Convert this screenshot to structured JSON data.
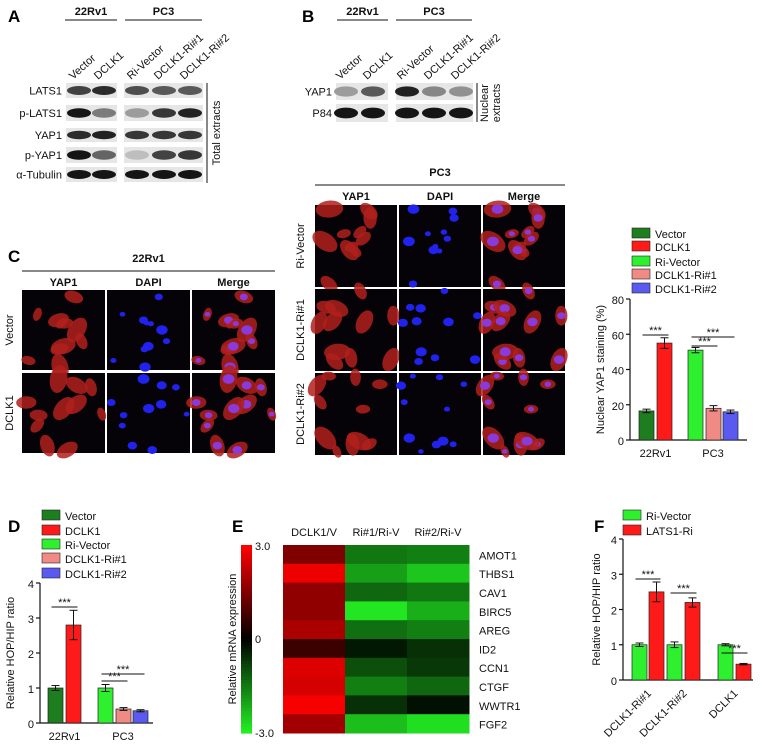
{
  "panel_labels": {
    "A": "A",
    "B": "B",
    "C": "C",
    "D": "D",
    "E": "E",
    "F": "F"
  },
  "blot_A": {
    "groups": [
      "22Rv1",
      "PC3"
    ],
    "lanes": [
      "Vector",
      "DCLK1",
      "Ri-Vector",
      "DCLK1-Ri#1",
      "DCLK1-Ri#2"
    ],
    "rows": [
      {
        "label": "LATS1",
        "intensity": [
          0.75,
          0.85,
          0.7,
          0.65,
          0.65
        ]
      },
      {
        "label": "p-LATS1",
        "intensity": [
          0.95,
          0.5,
          0.35,
          0.8,
          0.9
        ]
      },
      {
        "label": "YAP1",
        "intensity": [
          0.85,
          0.9,
          0.8,
          0.8,
          0.8
        ]
      },
      {
        "label": "p-YAP1",
        "intensity": [
          0.95,
          0.6,
          0.2,
          0.75,
          0.8
        ]
      },
      {
        "label": "α-Tubulin",
        "intensity": [
          0.95,
          0.95,
          0.95,
          0.95,
          0.95
        ]
      }
    ],
    "side_label": [
      "Total extracts"
    ]
  },
  "blot_B": {
    "groups": [
      "22Rv1",
      "PC3"
    ],
    "lanes": [
      "Vector",
      "DCLK1",
      "Ri-Vector",
      "DCLK1-Ri#1",
      "DCLK1-Ri#2"
    ],
    "rows": [
      {
        "label": "YAP1",
        "intensity": [
          0.35,
          0.65,
          0.9,
          0.45,
          0.4
        ]
      },
      {
        "label": "P84",
        "intensity": [
          0.95,
          0.95,
          0.95,
          0.95,
          0.95
        ]
      }
    ],
    "side_label": [
      "Nuclear",
      "extracts"
    ]
  },
  "if_C": {
    "title": "22Rv1",
    "columns": [
      "YAP1",
      "DAPI",
      "Merge"
    ],
    "rows": [
      "Vector",
      "DCLK1"
    ]
  },
  "if_PC3": {
    "title": "PC3",
    "columns": [
      "YAP1",
      "DAPI",
      "Merge"
    ],
    "rows": [
      "Ri-Vector",
      "DCLK1-Ri#1",
      "DCLK1-Ri#2"
    ]
  },
  "colors": {
    "Vector": "#1e7d1e",
    "DCLK1": "#ff1a1a",
    "Ri-Vector": "#2ef02e",
    "DCLK1-Ri#1": "#f08a84",
    "DCLK1-Ri#2": "#5a5af0",
    "LATS1-Ri": "#ff1a1a"
  },
  "chart_data": [
    {
      "id": "nuclear",
      "type": "bar",
      "ylabel": "Nuclear YAP1 staining (%)",
      "ylim": [
        0,
        80
      ],
      "yticks": [
        "0",
        "20",
        "40",
        "60",
        "80"
      ],
      "legend": [
        "Vector",
        "DCLK1",
        "Ri-Vector",
        "DCLK1-Ri#1",
        "DCLK1-Ri#2"
      ],
      "legend_position": "top",
      "groups": [
        {
          "label": "22Rv1",
          "bars": [
            {
              "series": "Vector",
              "value": 16.5,
              "error": 1.0
            },
            {
              "series": "DCLK1",
              "value": 55,
              "error": 3.0
            }
          ]
        },
        {
          "label": "PC3",
          "bars": [
            {
              "series": "Ri-Vector",
              "value": 51,
              "error": 1.5
            },
            {
              "series": "DCLK1-Ri#1",
              "value": 18,
              "error": 1.5
            },
            {
              "series": "DCLK1-Ri#2",
              "value": 16,
              "error": 1.0
            }
          ]
        }
      ],
      "significance": [
        {
          "group": 0,
          "from": 0,
          "to": 1,
          "label": "***"
        },
        {
          "group": 1,
          "from": 0,
          "to": 2,
          "label": "***"
        },
        {
          "group": 1,
          "from": 0,
          "to": 1,
          "label": "***"
        }
      ]
    },
    {
      "id": "D",
      "type": "bar",
      "ylabel": "Relative HOP/HIP ratio",
      "ylim": [
        0,
        4
      ],
      "yticks": [
        "0",
        "1",
        "2",
        "3",
        "4"
      ],
      "legend": [
        "Vector",
        "DCLK1",
        "Ri-Vector",
        "DCLK1-Ri#1",
        "DCLK1-Ri#2"
      ],
      "legend_position": "top",
      "groups": [
        {
          "label": "22Rv1",
          "bars": [
            {
              "series": "Vector",
              "value": 1.0,
              "error": 0.07
            },
            {
              "series": "DCLK1",
              "value": 2.8,
              "error": 0.42
            }
          ]
        },
        {
          "label": "PC3",
          "bars": [
            {
              "series": "Ri-Vector",
              "value": 1.0,
              "error": 0.1
            },
            {
              "series": "DCLK1-Ri#1",
              "value": 0.4,
              "error": 0.04
            },
            {
              "series": "DCLK1-Ri#2",
              "value": 0.35,
              "error": 0.03
            }
          ]
        }
      ],
      "significance": [
        {
          "group": 0,
          "from": 0,
          "to": 1,
          "label": "***"
        },
        {
          "group": 1,
          "from": 0,
          "to": 2,
          "label": "***"
        },
        {
          "group": 1,
          "from": 0,
          "to": 1,
          "label": "***"
        }
      ]
    },
    {
      "id": "E",
      "type": "heatmap",
      "colorbar_label": "Relative mRNA expression",
      "colorbar_ticks": [
        "3.0",
        "0",
        "-3.0"
      ],
      "range": [
        -3,
        3
      ],
      "columns": [
        "DCLK1/V",
        "Ri#1/Ri-V",
        "Ri#2/Ri-V"
      ],
      "rows": [
        "AMOT1",
        "THBS1",
        "CAV1",
        "BIRC5",
        "AREG",
        "ID2",
        "CCN1",
        "CTGF",
        "WWTR1",
        "FGF2"
      ],
      "values": [
        [
          1.5,
          -1.5,
          -1.6
        ],
        [
          2.8,
          -2.0,
          -2.5
        ],
        [
          1.7,
          -1.3,
          -1.5
        ],
        [
          1.7,
          -2.9,
          -2.2
        ],
        [
          2.0,
          -1.4,
          -1.6
        ],
        [
          0.7,
          -0.3,
          -0.6
        ],
        [
          2.6,
          -1.0,
          -0.7
        ],
        [
          2.5,
          -1.6,
          -1.3
        ],
        [
          2.9,
          -0.6,
          -0.2
        ],
        [
          1.9,
          -2.4,
          -2.8
        ]
      ]
    },
    {
      "id": "F",
      "type": "bar",
      "ylabel": "Relative HOP/HIP ratio",
      "ylim": [
        0,
        4
      ],
      "yticks": [
        "0",
        "1",
        "2",
        "3",
        "4"
      ],
      "legend": [
        "Ri-Vector",
        "LATS1-Ri"
      ],
      "legend_position": "top",
      "groups": [
        {
          "label": "DCLK1-Ri#1",
          "bars": [
            {
              "series": "Ri-Vector",
              "value": 1.0,
              "error": 0.05
            },
            {
              "series": "LATS1-Ri",
              "value": 2.5,
              "error": 0.28
            }
          ]
        },
        {
          "label": "DCLK1-Ri#2",
          "bars": [
            {
              "series": "Ri-Vector",
              "value": 1.0,
              "error": 0.08
            },
            {
              "series": "LATS1-Ri",
              "value": 2.2,
              "error": 0.13
            }
          ]
        },
        {
          "label": "DCLK1",
          "bars": [
            {
              "series": "Ri-Vector",
              "value": 1.0,
              "error": 0.03
            },
            {
              "series": "LATS1-Ri",
              "value": 0.45,
              "error": 0.02
            }
          ]
        }
      ],
      "significance": [
        {
          "group": 0,
          "from": 0,
          "to": 1,
          "label": "***"
        },
        {
          "group": 1,
          "from": 0,
          "to": 1,
          "label": "***"
        },
        {
          "group": 2,
          "from": 0,
          "to": 1,
          "label": "***"
        }
      ]
    }
  ]
}
